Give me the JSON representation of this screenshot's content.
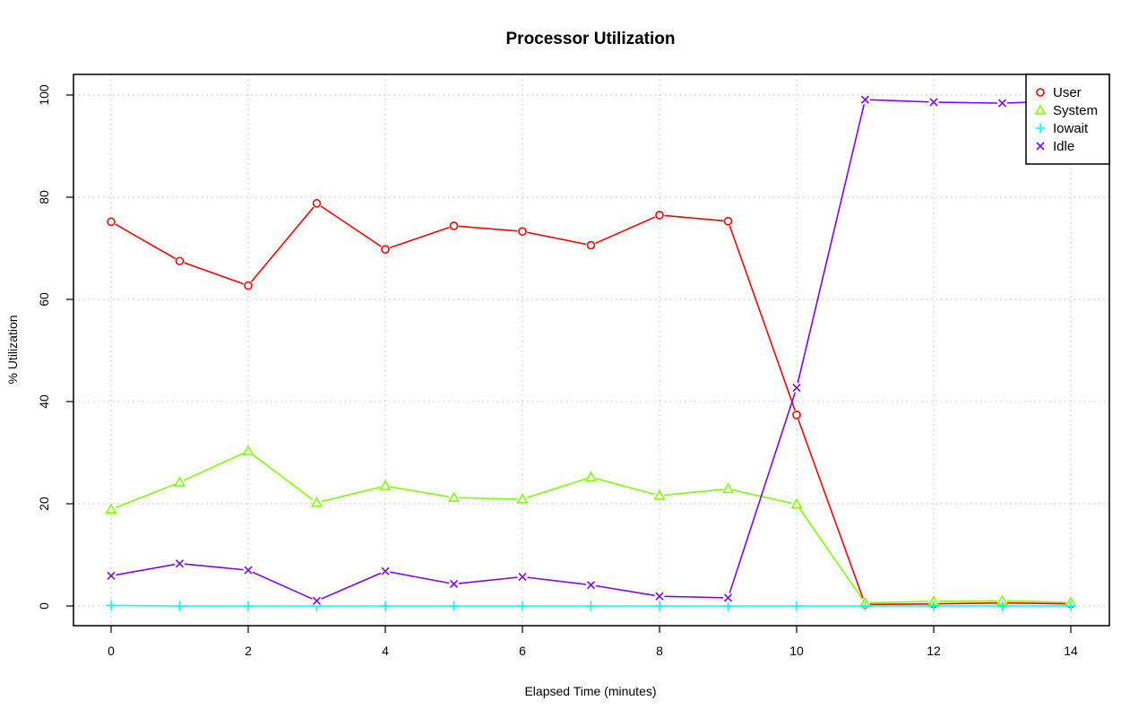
{
  "chart_data": {
    "type": "line",
    "title": "Processor Utilization",
    "xlabel": "Elapsed Time (minutes)",
    "ylabel": "% Utilization",
    "xlim": [
      0,
      14
    ],
    "ylim": [
      0,
      100
    ],
    "x_ticks": [
      "0",
      "2",
      "4",
      "6",
      "8",
      "10",
      "12",
      "14"
    ],
    "y_ticks": [
      "0",
      "20",
      "40",
      "60",
      "80",
      "100"
    ],
    "grid": true,
    "legend_position": "top-right",
    "x": [
      0,
      1,
      2,
      3,
      4,
      5,
      6,
      7,
      8,
      9,
      10,
      11,
      12,
      13,
      14
    ],
    "series": [
      {
        "name": "User",
        "color": "#ff0000",
        "marker": "circle",
        "values": [
          75.2,
          67.5,
          62.7,
          78.8,
          69.8,
          74.4,
          73.3,
          70.6,
          76.5,
          75.3,
          37.4,
          0.3,
          0.4,
          0.6,
          0.4
        ]
      },
      {
        "name": "System",
        "color": "#80ff00",
        "marker": "triangle",
        "values": [
          18.9,
          24.2,
          30.3,
          20.2,
          23.5,
          21.2,
          20.9,
          25.2,
          21.6,
          22.9,
          19.9,
          0.6,
          0.9,
          1.0,
          0.7
        ]
      },
      {
        "name": "Iowait",
        "color": "#00ffff",
        "marker": "plus",
        "values": [
          0.1,
          0.0,
          0.0,
          0.0,
          0.0,
          0.0,
          0.0,
          0.0,
          0.0,
          0.0,
          0.0,
          0.0,
          0.0,
          0.0,
          0.0
        ]
      },
      {
        "name": "Idle",
        "color": "#8000ff",
        "marker": "cross",
        "values": [
          5.9,
          8.3,
          7.0,
          1.0,
          6.8,
          4.3,
          5.7,
          4.1,
          1.9,
          1.6,
          42.7,
          99.1,
          98.6,
          98.4,
          98.9
        ]
      }
    ]
  }
}
